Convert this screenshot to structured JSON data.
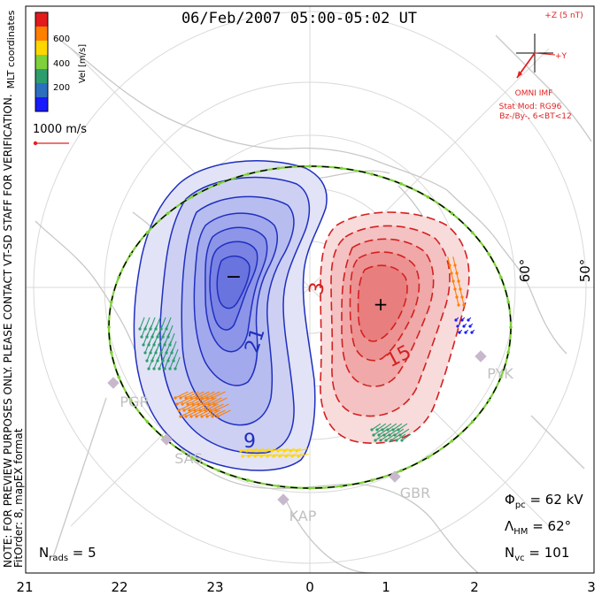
{
  "title": "06/Feb/2007 05:00-05:02 UT",
  "coord_label": "MLT coordinates",
  "colorbar": {
    "ticks": [
      "600",
      "400",
      "200"
    ],
    "label": "Vel [m/s]",
    "colors": [
      "#e31a1c",
      "#ff7f00",
      "#ffd700",
      "#7fd13b",
      "#2e9d6e",
      "#2c6fbf",
      "#1a1aff"
    ]
  },
  "scale_vector": "1000 m/s",
  "imf": {
    "z_label": "+Z (5 nT)",
    "y_label": "+Y",
    "omni": "OMNI IMF",
    "stat_mod": "Stat Mod: RG96",
    "condition": "Bz-/By-, 6<BT<12",
    "color": "#e02020"
  },
  "side_text": {
    "line1": "NOTE: FOR PREVIEW PURPOSES ONLY. PLEASE CONTACT VT-SD STAFF FOR VERIFICATION.",
    "line2": "FitOrder: 8, mapEX format"
  },
  "contour_labels": {
    "neg_min": "−",
    "pos_max": "+",
    "neg_21": "21",
    "neg_9": "9",
    "pos_3": "3",
    "pos_15": "15"
  },
  "lat_labels": [
    "60°",
    "50°"
  ],
  "stations": [
    "PGR",
    "SAS",
    "KAP",
    "GBR",
    "PYK"
  ],
  "stats": {
    "phi_pc": "Φpc = 62 kV",
    "lambda_hm": "ΛHM = 62°",
    "n_vc": "Nvc = 101",
    "n_rads": "Nrads = 5"
  },
  "stats_parts": {
    "phi_sym": "Φ",
    "phi_sub": "pc",
    "phi_val": " = 62 kV",
    "lam_sym": "Λ",
    "lam_sub": "HM",
    "lam_val": " = 62°",
    "nvc_sym": "N",
    "nvc_sub": "vc",
    "nvc_val": " = 101",
    "nr_sym": "N",
    "nr_sub": "rads",
    "nr_val": " = 5"
  },
  "mlt_ticks": [
    "21",
    "22",
    "23",
    "0",
    "1",
    "2",
    "3"
  ],
  "colors": {
    "negative_fill": "#7b7fe6",
    "negative_line": "#1f2fbf",
    "positive_fill": "#ee8080",
    "positive_line": "#d42020",
    "boundary": "#7fd13b",
    "coastline": "#c8c8c8"
  }
}
